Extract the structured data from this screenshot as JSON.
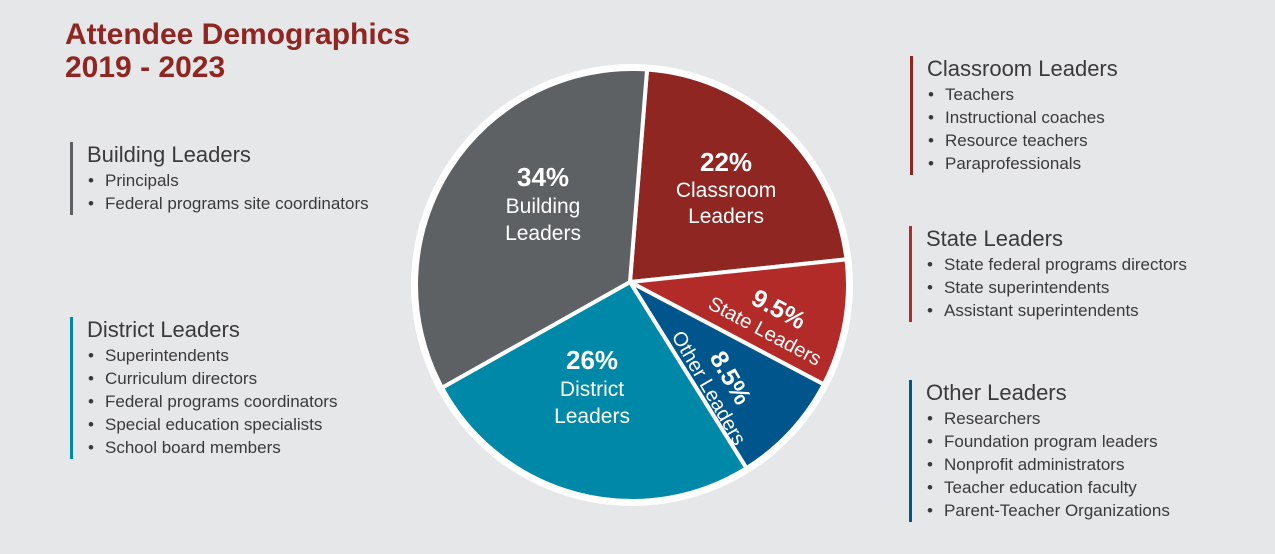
{
  "title": {
    "line1": "Attendee Demographics",
    "line2": "2019 - 2023"
  },
  "colors": {
    "title": "#8f2622",
    "building": "#5e6163",
    "classroom": "#8f2622",
    "state": "#b32b28",
    "other": "#00558c",
    "district": "#0088a8",
    "text": "#3a3a3a"
  },
  "groups": {
    "building": {
      "title": "Building Leaders",
      "items": [
        "Principals",
        "Federal programs site coordinators"
      ]
    },
    "district": {
      "title": "District Leaders",
      "items": [
        "Superintendents",
        "Curriculum directors",
        "Federal programs coordinators",
        "Special education specialists",
        "School board members"
      ]
    },
    "classroom": {
      "title": "Classroom Leaders",
      "items": [
        "Teachers",
        "Instructional coaches",
        "Resource teachers",
        "Paraprofessionals"
      ]
    },
    "state": {
      "title": "State Leaders",
      "items": [
        "State federal programs directors",
        "State superintendents",
        "Assistant superintendents"
      ]
    },
    "other": {
      "title": "Other Leaders",
      "items": [
        "Researchers",
        "Foundation program leaders",
        "Nonprofit administrators",
        "Teacher education faculty",
        "Parent-Teacher Organizations"
      ]
    }
  },
  "chart_data": {
    "type": "pie",
    "slices": [
      {
        "key": "classroom",
        "percent_label": "22%",
        "label_lines": [
          "Classroom",
          "Leaders"
        ],
        "value": 22,
        "color": "#8f2622"
      },
      {
        "key": "state",
        "percent_label": "9.5%",
        "label_lines": [
          "State Leaders"
        ],
        "value": 9.5,
        "color": "#b32b28"
      },
      {
        "key": "other",
        "percent_label": "8.5%",
        "label_lines": [
          "Other Leaders"
        ],
        "value": 8.5,
        "color": "#00558c"
      },
      {
        "key": "district",
        "percent_label": "26%",
        "label_lines": [
          "District",
          "Leaders"
        ],
        "value": 26,
        "color": "#0088a8"
      },
      {
        "key": "building",
        "percent_label": "34%",
        "label_lines": [
          "Building",
          "Leaders"
        ],
        "value": 34,
        "color": "#5e6163"
      }
    ]
  }
}
